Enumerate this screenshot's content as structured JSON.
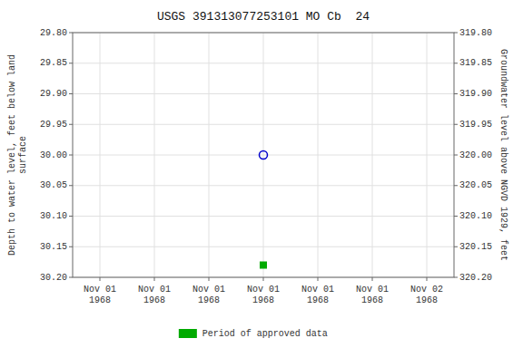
{
  "chart_data": {
    "type": "scatter",
    "title": "USGS 391313077253101 MO Cb  24",
    "y_label": "Depth to water level, feet below land\nsurface",
    "y2_label": "Groundwater level above NGVD 1929, feet",
    "categories": [
      "Nov 01\n1968",
      "Nov 01\n1968",
      "Nov 01\n1968",
      "Nov 01\n1968",
      "Nov 01\n1968",
      "Nov 01\n1968",
      "Nov 02\n1968"
    ],
    "series": [
      {
        "color": "#0000cc",
        "marker": "open-circle",
        "values": [
          null,
          null,
          null,
          30.0,
          null,
          null,
          null
        ]
      },
      {
        "name": "Period of approved data",
        "color": "#00aa00",
        "marker": "square",
        "values": [
          null,
          null,
          null,
          30.18,
          null,
          null,
          null
        ]
      }
    ],
    "ylim": [
      30.2,
      29.8
    ],
    "yticks": [
      {
        "value": 29.8,
        "label": "29.80"
      },
      {
        "value": 29.85,
        "label": "29.85"
      },
      {
        "value": 29.9,
        "label": "29.90"
      },
      {
        "value": 29.95,
        "label": "29.95"
      },
      {
        "value": 30.0,
        "label": "30.00"
      },
      {
        "value": 30.05,
        "label": "30.05"
      },
      {
        "value": 30.1,
        "label": "30.10"
      },
      {
        "value": 30.15,
        "label": "30.15"
      },
      {
        "value": 30.2,
        "label": "30.20"
      }
    ],
    "y2lim": [
      320.2,
      319.8
    ],
    "y2ticks": [
      {
        "value": 320.2,
        "label": "320.20"
      },
      {
        "value": 320.15,
        "label": "320.15"
      },
      {
        "value": 320.1,
        "label": "320.10"
      },
      {
        "value": 320.05,
        "label": "320.05"
      },
      {
        "value": 320.0,
        "label": "320.00"
      },
      {
        "value": 319.95,
        "label": "319.95"
      },
      {
        "value": 319.9,
        "label": "319.90"
      },
      {
        "value": 319.85,
        "label": "319.85"
      },
      {
        "value": 319.8,
        "label": "319.80"
      }
    ],
    "grid": true,
    "legend": "bottom"
  }
}
